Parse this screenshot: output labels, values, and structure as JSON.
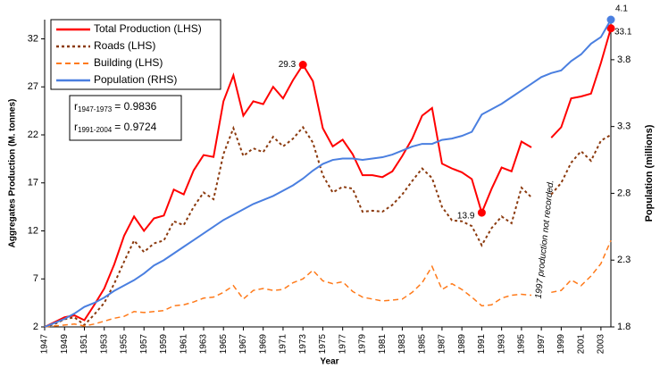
{
  "chart_data": {
    "type": "line",
    "x_label": "Year",
    "y_label": "Aggregates Production (M. tonnes)",
    "y2_label": "Population (millions)",
    "x": [
      1947,
      1948,
      1949,
      1950,
      1951,
      1952,
      1953,
      1954,
      1955,
      1956,
      1957,
      1958,
      1959,
      1960,
      1961,
      1962,
      1963,
      1964,
      1965,
      1966,
      1967,
      1968,
      1969,
      1970,
      1971,
      1972,
      1973,
      1974,
      1975,
      1976,
      1977,
      1978,
      1979,
      1980,
      1981,
      1982,
      1983,
      1984,
      1985,
      1986,
      1987,
      1988,
      1989,
      1990,
      1991,
      1992,
      1993,
      1994,
      1995,
      1996,
      1997,
      1998,
      1999,
      2000,
      2001,
      2002,
      2003,
      2004
    ],
    "xlim": [
      1947,
      2004
    ],
    "xticks": [
      1947,
      1949,
      1951,
      1953,
      1955,
      1957,
      1959,
      1961,
      1963,
      1965,
      1967,
      1969,
      1971,
      1973,
      1975,
      1977,
      1979,
      1981,
      1983,
      1985,
      1987,
      1989,
      1991,
      1993,
      1995,
      1997,
      1999,
      2001,
      2003
    ],
    "ylim": [
      2,
      34
    ],
    "yticks": [
      2,
      7,
      12,
      17,
      22,
      27,
      32
    ],
    "y2lim": [
      1.8,
      4.1
    ],
    "y2ticks": [
      1.8,
      2.3,
      2.8,
      3.3,
      3.8
    ],
    "grid": false,
    "legend": "upper left",
    "series": [
      {
        "name": "Total Production (LHS)",
        "color": "#ff0000",
        "dash": "solid",
        "width": 2,
        "labeled": [
          26,
          44,
          57
        ],
        "values": [
          2,
          2.5,
          3,
          3.2,
          2.7,
          4.3,
          6,
          8.5,
          11.5,
          13.5,
          12,
          13.3,
          13.6,
          16.3,
          15.8,
          18.3,
          19.9,
          19.7,
          25.5,
          28.2,
          24,
          25.5,
          25.2,
          27,
          25.8,
          27.7,
          29.3,
          27.6,
          22.7,
          20.8,
          21.5,
          20,
          17.8,
          17.8,
          17.6,
          18.2,
          19.8,
          21.6,
          24,
          24.8,
          19,
          18.5,
          18.1,
          17.4,
          13.9,
          16.4,
          18.6,
          18.2,
          21.3,
          20.7,
          null,
          21.7,
          22.8,
          25.8,
          26,
          26.3,
          29.5,
          33.1
        ]
      },
      {
        "name": "Roads (LHS)",
        "color": "#8b3a0e",
        "dash": "dotted",
        "width": 2,
        "labeled": [],
        "values": [
          2,
          2.3,
          2.8,
          3,
          2.2,
          3.3,
          4.5,
          6.5,
          8.8,
          11,
          9.8,
          10.7,
          11,
          13,
          12.6,
          14.5,
          16,
          15.3,
          20,
          22.7,
          19.8,
          20.6,
          20.2,
          21.8,
          20.8,
          21.6,
          22.8,
          21.2,
          17.8,
          16,
          16.6,
          16.4,
          14,
          14.1,
          14,
          14.7,
          15.8,
          17.2,
          18.5,
          17.5,
          14.5,
          13.1,
          13,
          12.5,
          10.5,
          12.3,
          13.5,
          12.8,
          16.5,
          15.5,
          null,
          15.8,
          17,
          19.1,
          20.3,
          19.3,
          21.4,
          22
        ]
      },
      {
        "name": "Building (LHS)",
        "color": "#ff7a1a",
        "dash": "dashed",
        "width": 1.5,
        "labeled": [],
        "values": [
          2,
          2.1,
          2.2,
          2.3,
          2.1,
          2.3,
          2.6,
          2.9,
          3.1,
          3.6,
          3.5,
          3.6,
          3.7,
          4.2,
          4.3,
          4.6,
          5,
          5.1,
          5.6,
          6.3,
          4.9,
          5.8,
          6,
          5.8,
          5.9,
          6.6,
          7,
          7.9,
          6.8,
          6.5,
          6.7,
          5.7,
          5.1,
          4.9,
          4.7,
          4.8,
          4.9,
          5.6,
          6.6,
          8.3,
          5.9,
          6.5,
          5.9,
          5.1,
          4.2,
          4.3,
          5,
          5.3,
          5.4,
          5.3,
          null,
          5.6,
          5.8,
          6.9,
          6.3,
          7.3,
          8.6,
          11
        ]
      },
      {
        "name": "Population (RHS)",
        "color": "#4a7fe0",
        "dash": "solid",
        "width": 2,
        "axis": "y2",
        "labeled": [
          57
        ],
        "values": [
          1.8,
          1.83,
          1.86,
          1.9,
          1.95,
          1.98,
          2.02,
          2.07,
          2.11,
          2.15,
          2.2,
          2.26,
          2.3,
          2.35,
          2.4,
          2.45,
          2.5,
          2.55,
          2.6,
          2.64,
          2.68,
          2.72,
          2.75,
          2.78,
          2.82,
          2.86,
          2.91,
          2.97,
          3.02,
          3.05,
          3.06,
          3.06,
          3.05,
          3.06,
          3.07,
          3.09,
          3.12,
          3.15,
          3.17,
          3.17,
          3.2,
          3.21,
          3.23,
          3.26,
          3.39,
          3.43,
          3.47,
          3.52,
          3.57,
          3.62,
          3.67,
          3.7,
          3.72,
          3.79,
          3.84,
          3.92,
          3.97,
          4.1
        ]
      }
    ],
    "correlations": [
      {
        "symbol": "r",
        "period": "1947-1973",
        "text": "= 0.9836"
      },
      {
        "symbol": "r",
        "period": "1991-2004",
        "text": "= 0.9724"
      }
    ],
    "note": "1997 production not recorded."
  }
}
